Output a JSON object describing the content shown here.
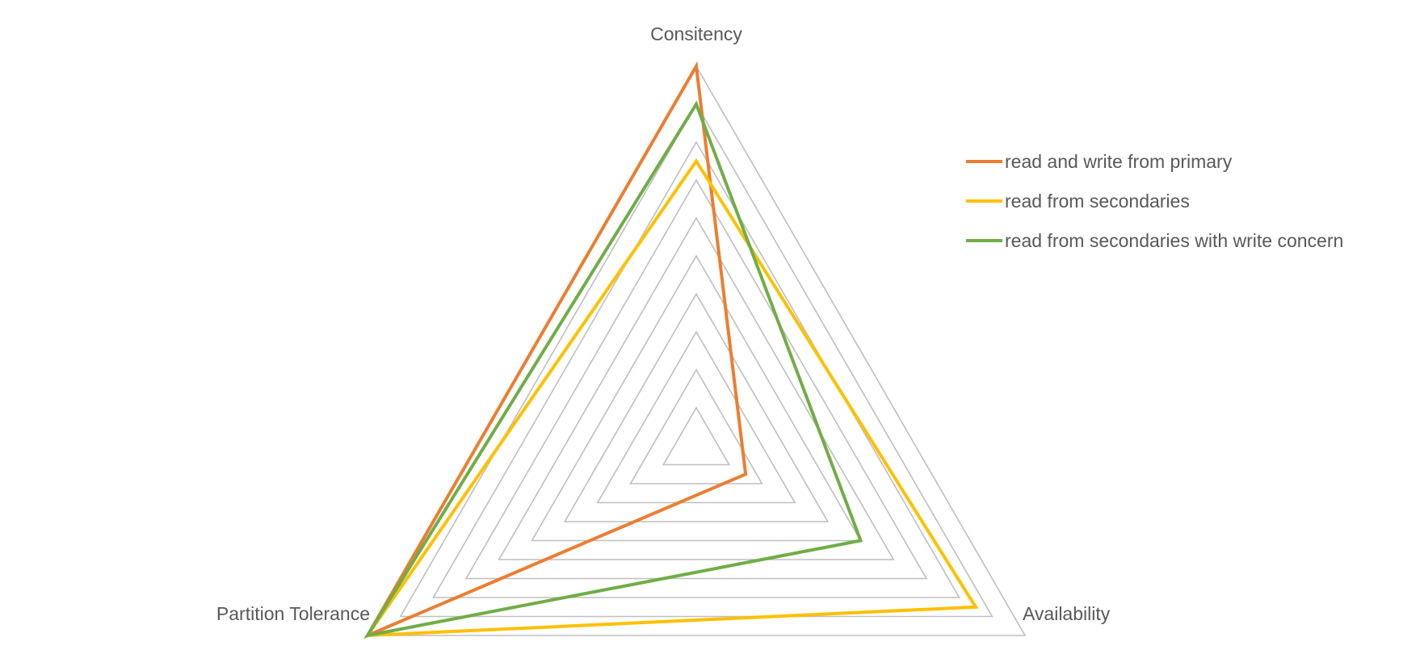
{
  "chart_data": {
    "type": "radar",
    "title": "",
    "axes": [
      "Consitency",
      "Availability",
      "Partition Tolerance"
    ],
    "rlim": [
      0,
      10
    ],
    "grid_steps": 10,
    "grid": true,
    "legend_position": "right",
    "series": [
      {
        "name": "read and write from primary",
        "color": "#ED7D31",
        "values": [
          10,
          1.5,
          10
        ]
      },
      {
        "name": "read from secondaries",
        "color": "#FFC000",
        "values": [
          7.5,
          8.5,
          10
        ]
      },
      {
        "name": "read from secondaries with write concern",
        "color": "#70AD47",
        "values": [
          9,
          5,
          10
        ]
      }
    ]
  }
}
